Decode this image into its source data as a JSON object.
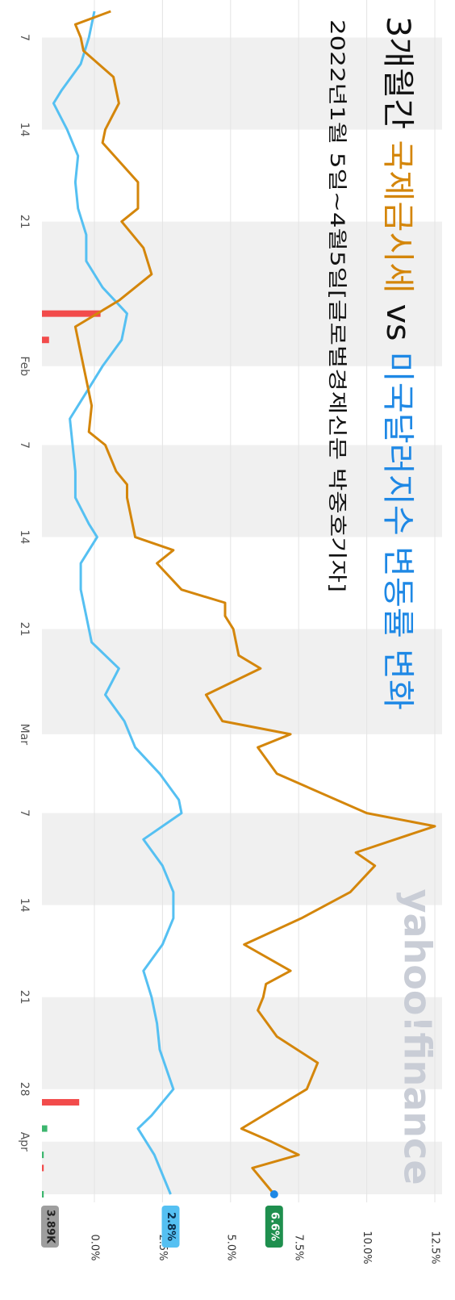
{
  "header": {
    "title_parts": [
      {
        "text": "3개월간 ",
        "color": "#111111"
      },
      {
        "text": "국제금시세",
        "color": "#d4860b"
      },
      {
        "text": " vs ",
        "color": "#111111"
      },
      {
        "text": "미국달러지수 변동률 변화",
        "color": "#1e88e5"
      }
    ],
    "subtitle": "2022년1월 5일~4월5일[글로벌경제신문 박중호기자]"
  },
  "watermark": "yahoo!finance",
  "colors": {
    "gold": "#d4860b",
    "dollar": "#55c0f2",
    "band": "#f0f0f0",
    "grid": "#e4e4e4",
    "volume_down": "#f24b4b",
    "volume_up": "#3cb66e"
  },
  "badges": {
    "volume": {
      "text": "3.89K",
      "bg": "#9e9e9e",
      "fg": "#222222"
    },
    "dollar": {
      "text": "2.8%",
      "bg": "#55c0f2",
      "fg": "#0b2d4a"
    },
    "gold": {
      "text": "6.6%",
      "bg": "#1e8f4e",
      "fg": "#ffffff"
    }
  },
  "chart_data": {
    "type": "line",
    "orientation": "rotated-90-clockwise",
    "x_range": [
      "2022-01-05",
      "2022-04-05"
    ],
    "ylim": [
      -2.5,
      12.5
    ],
    "y_ticks": [
      0,
      2.5,
      5,
      7.5,
      10,
      12.5
    ],
    "y_tick_labels": [
      "0.0%",
      "2.5%",
      "5.0%",
      "7.5%",
      "10.0%",
      "12.5%"
    ],
    "x_ticks": [
      {
        "date": "2022-01-07",
        "label": "7"
      },
      {
        "date": "2022-01-14",
        "label": "14"
      },
      {
        "date": "2022-01-21",
        "label": "21"
      },
      {
        "date": "2022-02-01",
        "label": "Feb"
      },
      {
        "date": "2022-02-07",
        "label": "7"
      },
      {
        "date": "2022-02-14",
        "label": "14"
      },
      {
        "date": "2022-02-21",
        "label": "21"
      },
      {
        "date": "2022-03-01",
        "label": "Mar"
      },
      {
        "date": "2022-03-07",
        "label": "7"
      },
      {
        "date": "2022-03-14",
        "label": "14"
      },
      {
        "date": "2022-03-21",
        "label": "21"
      },
      {
        "date": "2022-03-28",
        "label": "28"
      },
      {
        "date": "2022-04-01",
        "label": "Apr"
      }
    ],
    "shaded_weeks": [
      [
        "2022-01-07",
        "2022-01-14"
      ],
      [
        "2022-01-21",
        "2022-02-01"
      ],
      [
        "2022-02-07",
        "2022-02-14"
      ],
      [
        "2022-02-21",
        "2022-03-01"
      ],
      [
        "2022-03-07",
        "2022-03-14"
      ],
      [
        "2022-03-21",
        "2022-03-28"
      ],
      [
        "2022-04-01",
        "2022-04-05"
      ]
    ],
    "series": [
      {
        "key": "gold",
        "end_label": "6.6%",
        "points": [
          [
            "2022-01-05",
            0.6
          ],
          [
            "2022-01-06",
            -0.7
          ],
          [
            "2022-01-07",
            -0.5
          ],
          [
            "2022-01-08",
            -0.4
          ],
          [
            "2022-01-10",
            0.7
          ],
          [
            "2022-01-12",
            0.9
          ],
          [
            "2022-01-14",
            0.4
          ],
          [
            "2022-01-15",
            0.3
          ],
          [
            "2022-01-18",
            1.6
          ],
          [
            "2022-01-20",
            1.6
          ],
          [
            "2022-01-21",
            1.0
          ],
          [
            "2022-01-23",
            1.8
          ],
          [
            "2022-01-25",
            2.1
          ],
          [
            "2022-01-27",
            0.9
          ],
          [
            "2022-01-29",
            -0.7
          ],
          [
            "2022-01-31",
            -0.5
          ],
          [
            "2022-02-02",
            -0.3
          ],
          [
            "2022-02-04",
            -0.1
          ],
          [
            "2022-02-06",
            -0.2
          ],
          [
            "2022-02-07",
            0.4
          ],
          [
            "2022-02-09",
            0.8
          ],
          [
            "2022-02-10",
            1.2
          ],
          [
            "2022-02-11",
            1.2
          ],
          [
            "2022-02-14",
            1.5
          ],
          [
            "2022-02-15",
            2.9
          ],
          [
            "2022-02-16",
            2.3
          ],
          [
            "2022-02-18",
            3.2
          ],
          [
            "2022-02-19",
            4.8
          ],
          [
            "2022-02-20",
            4.8
          ],
          [
            "2022-02-21",
            5.1
          ],
          [
            "2022-02-23",
            5.3
          ],
          [
            "2022-02-24",
            6.1
          ],
          [
            "2022-02-26",
            4.1
          ],
          [
            "2022-02-28",
            4.7
          ],
          [
            "2022-03-01",
            7.2
          ],
          [
            "2022-03-02",
            6.0
          ],
          [
            "2022-03-04",
            6.7
          ],
          [
            "2022-03-07",
            10.0
          ],
          [
            "2022-03-08",
            12.5
          ],
          [
            "2022-03-10",
            9.6
          ],
          [
            "2022-03-11",
            10.3
          ],
          [
            "2022-03-13",
            9.4
          ],
          [
            "2022-03-15",
            7.6
          ],
          [
            "2022-03-17",
            5.5
          ],
          [
            "2022-03-19",
            7.2
          ],
          [
            "2022-03-20",
            6.3
          ],
          [
            "2022-03-21",
            6.2
          ],
          [
            "2022-03-22",
            6.0
          ],
          [
            "2022-03-24",
            6.7
          ],
          [
            "2022-03-26",
            8.2
          ],
          [
            "2022-03-28",
            7.8
          ],
          [
            "2022-03-29",
            7.0
          ],
          [
            "2022-03-31",
            5.4
          ],
          [
            "2022-04-01",
            6.5
          ],
          [
            "2022-04-02",
            7.5
          ],
          [
            "2022-04-03",
            5.8
          ],
          [
            "2022-04-05",
            6.6
          ]
        ]
      },
      {
        "key": "dollar",
        "end_label": "2.8%",
        "points": [
          [
            "2022-01-05",
            0.0
          ],
          [
            "2022-01-06",
            -0.1
          ],
          [
            "2022-01-07",
            -0.2
          ],
          [
            "2022-01-09",
            -0.5
          ],
          [
            "2022-01-11",
            -1.2
          ],
          [
            "2022-01-12",
            -1.5
          ],
          [
            "2022-01-14",
            -1.0
          ],
          [
            "2022-01-16",
            -0.6
          ],
          [
            "2022-01-18",
            -0.7
          ],
          [
            "2022-01-20",
            -0.6
          ],
          [
            "2022-01-22",
            -0.3
          ],
          [
            "2022-01-24",
            -0.3
          ],
          [
            "2022-01-26",
            0.3
          ],
          [
            "2022-01-28",
            1.2
          ],
          [
            "2022-01-30",
            1.0
          ],
          [
            "2022-02-01",
            0.3
          ],
          [
            "2022-02-03",
            -0.3
          ],
          [
            "2022-02-05",
            -0.9
          ],
          [
            "2022-02-07",
            -0.8
          ],
          [
            "2022-02-09",
            -0.7
          ],
          [
            "2022-02-11",
            -0.7
          ],
          [
            "2022-02-13",
            -0.2
          ],
          [
            "2022-02-14",
            0.1
          ],
          [
            "2022-02-16",
            -0.5
          ],
          [
            "2022-02-18",
            -0.5
          ],
          [
            "2022-02-20",
            -0.3
          ],
          [
            "2022-02-22",
            -0.1
          ],
          [
            "2022-02-24",
            0.9
          ],
          [
            "2022-02-26",
            0.4
          ],
          [
            "2022-02-28",
            1.1
          ],
          [
            "2022-03-02",
            1.5
          ],
          [
            "2022-03-04",
            2.4
          ],
          [
            "2022-03-06",
            3.1
          ],
          [
            "2022-03-07",
            3.2
          ],
          [
            "2022-03-09",
            1.8
          ],
          [
            "2022-03-11",
            2.5
          ],
          [
            "2022-03-13",
            2.9
          ],
          [
            "2022-03-15",
            2.9
          ],
          [
            "2022-03-17",
            2.5
          ],
          [
            "2022-03-19",
            1.8
          ],
          [
            "2022-03-21",
            2.1
          ],
          [
            "2022-03-23",
            2.3
          ],
          [
            "2022-03-25",
            2.4
          ],
          [
            "2022-03-28",
            2.9
          ],
          [
            "2022-03-30",
            2.1
          ],
          [
            "2022-03-31",
            1.6
          ],
          [
            "2022-04-02",
            2.2
          ],
          [
            "2022-04-05",
            2.8
          ]
        ]
      }
    ],
    "volume": {
      "label": "3.89K",
      "bars": [
        {
          "date": "2022-01-28",
          "value": 3.3,
          "dir": "down"
        },
        {
          "date": "2022-01-30",
          "value": 0.4,
          "dir": "down"
        },
        {
          "date": "2022-03-29",
          "value": 2.1,
          "dir": "down"
        },
        {
          "date": "2022-03-31",
          "value": 0.3,
          "dir": "up"
        },
        {
          "date": "2022-04-02",
          "value": 0.1,
          "dir": "up"
        },
        {
          "date": "2022-04-03",
          "value": 0.1,
          "dir": "down"
        },
        {
          "date": "2022-04-05",
          "value": 0.1,
          "dir": "up"
        }
      ]
    }
  }
}
